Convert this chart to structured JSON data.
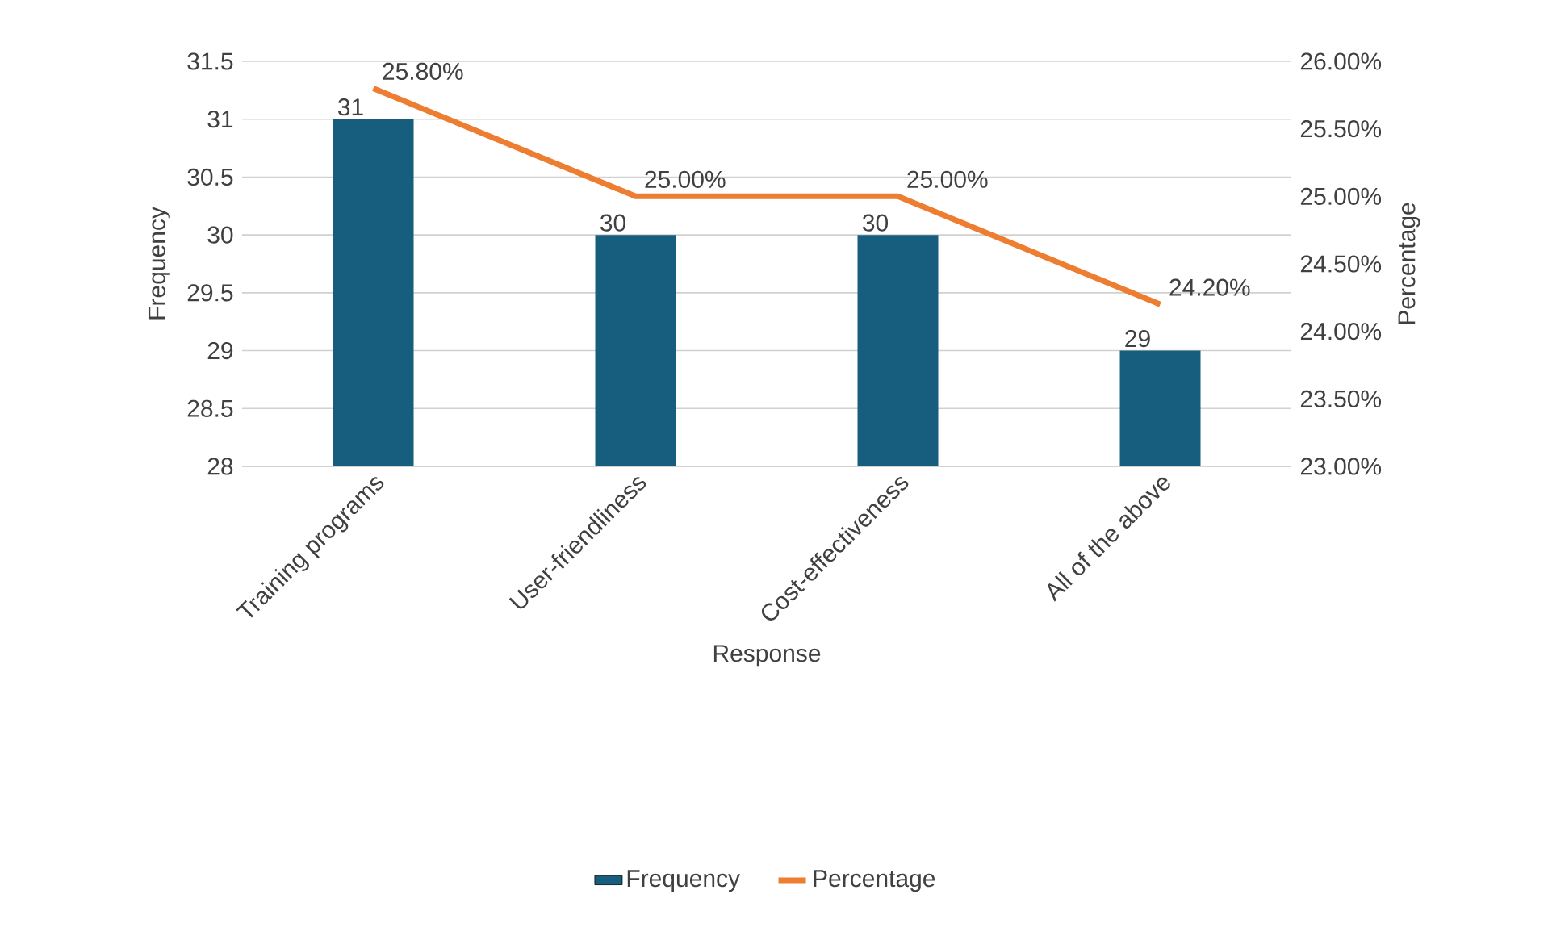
{
  "chart_data": {
    "type": "bar",
    "xlabel": "Response",
    "ylabel": "Frequency",
    "y2label": "Percentage",
    "categories": [
      "Training programs",
      "User-friendliness",
      "Cost-effectiveness",
      "All of the above"
    ],
    "series": [
      {
        "name": "Frequency",
        "color": "#175e7e",
        "values": [
          31,
          30,
          30,
          29
        ],
        "value_labels": [
          "31",
          "30",
          "30",
          "29"
        ]
      },
      {
        "name": "Percentage",
        "type": "line",
        "axis": "y2",
        "color": "#ed7d31",
        "values": [
          25.8,
          25.0,
          25.0,
          24.2
        ],
        "value_labels": [
          "25.80%",
          "25.00%",
          "25.00%",
          "24.20%"
        ]
      }
    ],
    "ylim": [
      28,
      31.5
    ],
    "yticks": [
      28,
      28.5,
      29,
      29.5,
      30,
      30.5,
      31,
      31.5
    ],
    "y2lim": [
      23,
      26
    ],
    "y2ticks": [
      {
        "value": 23,
        "label": "23.00%"
      },
      {
        "value": 23.5,
        "label": "23.50%"
      },
      {
        "value": 24,
        "label": "24.00%"
      },
      {
        "value": 24.5,
        "label": "24.50%"
      },
      {
        "value": 25,
        "label": "25.00%"
      },
      {
        "value": 25.5,
        "label": "25.50%"
      },
      {
        "value": 26,
        "label": "26.00%"
      }
    ],
    "grid": "y",
    "legend": "bottom",
    "marker": "none",
    "line_style": "solid"
  }
}
